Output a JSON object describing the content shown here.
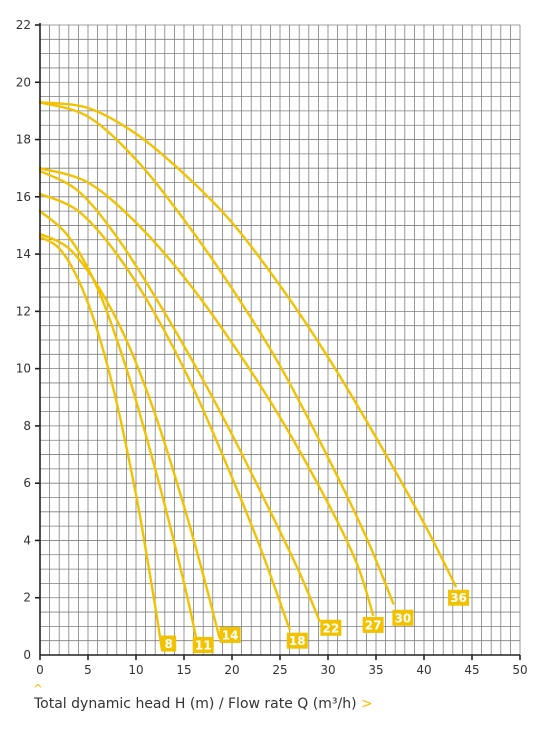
{
  "chart_data": {
    "type": "line",
    "xlim": [
      0,
      50
    ],
    "ylim": [
      0,
      22
    ],
    "x_ticks": [
      0,
      5,
      10,
      15,
      20,
      25,
      30,
      35,
      40,
      45,
      50
    ],
    "y_ticks": [
      2,
      4,
      6,
      8,
      10,
      12,
      14,
      16,
      18,
      20,
      22
    ],
    "grid": true,
    "series": [
      {
        "name": "8",
        "color": "#f2c200",
        "x": [
          0,
          2,
          4,
          6,
          8,
          10,
          11,
          12,
          12.7
        ],
        "y": [
          14.6,
          14.2,
          13.1,
          11.3,
          8.8,
          5.6,
          3.7,
          1.7,
          0.2
        ]
      },
      {
        "name": "11",
        "color": "#f2c200",
        "x": [
          0,
          3,
          6,
          9,
          12,
          14,
          15.5,
          16.5
        ],
        "y": [
          15.5,
          14.6,
          12.8,
          10.0,
          6.5,
          3.9,
          1.8,
          0.2
        ]
      },
      {
        "name": "14",
        "color": "#f2c200",
        "x": [
          0,
          3,
          6,
          9,
          12,
          15,
          17,
          18.7
        ],
        "y": [
          14.7,
          14.2,
          12.9,
          11.0,
          8.4,
          5.2,
          2.8,
          0.6
        ]
      },
      {
        "name": "18",
        "color": "#f2c200",
        "x": [
          0,
          4,
          8,
          12,
          16,
          20,
          23,
          26
        ],
        "y": [
          16.1,
          15.5,
          14.0,
          11.9,
          9.3,
          6.2,
          3.7,
          0.9
        ]
      },
      {
        "name": "22",
        "color": "#f2c200",
        "x": [
          0,
          4,
          8,
          12,
          16,
          20,
          24,
          27,
          29.1
        ],
        "y": [
          16.9,
          16.2,
          14.6,
          12.5,
          10.2,
          7.7,
          5.0,
          2.9,
          1.2
        ]
      },
      {
        "name": "27",
        "color": "#f2c200",
        "x": [
          0,
          5,
          10,
          15,
          20,
          25,
          30,
          33,
          34.7
        ],
        "y": [
          17.0,
          16.5,
          15.1,
          13.2,
          10.9,
          8.3,
          5.3,
          3.2,
          1.4
        ]
      },
      {
        "name": "30",
        "color": "#f2c200",
        "x": [
          0,
          5,
          10,
          15,
          20,
          25,
          30,
          34,
          36.8
        ],
        "y": [
          19.3,
          18.8,
          17.3,
          15.2,
          12.8,
          10.1,
          6.9,
          4.1,
          1.8
        ]
      },
      {
        "name": "36",
        "color": "#f2c200",
        "x": [
          0,
          5,
          10,
          15,
          20,
          25,
          30,
          35,
          40,
          43.3
        ],
        "y": [
          19.3,
          19.1,
          18.2,
          16.8,
          15.1,
          12.9,
          10.4,
          7.6,
          4.6,
          2.4
        ]
      }
    ],
    "labels": [
      {
        "text": "8",
        "x": 13.4,
        "y": 0.4
      },
      {
        "text": "11",
        "x": 17.0,
        "y": 0.35
      },
      {
        "text": "14",
        "x": 19.8,
        "y": 0.7
      },
      {
        "text": "18",
        "x": 26.8,
        "y": 0.5
      },
      {
        "text": "22",
        "x": 30.3,
        "y": 0.95
      },
      {
        "text": "27",
        "x": 34.7,
        "y": 1.05
      },
      {
        "text": "30",
        "x": 37.8,
        "y": 1.3
      },
      {
        "text": "36",
        "x": 43.6,
        "y": 2.0
      }
    ],
    "xlabel": "Total dynamic head H (m) / Flow rate Q (m³/h)",
    "xlabel_suffix": ">",
    "scroll_hint": "^"
  }
}
